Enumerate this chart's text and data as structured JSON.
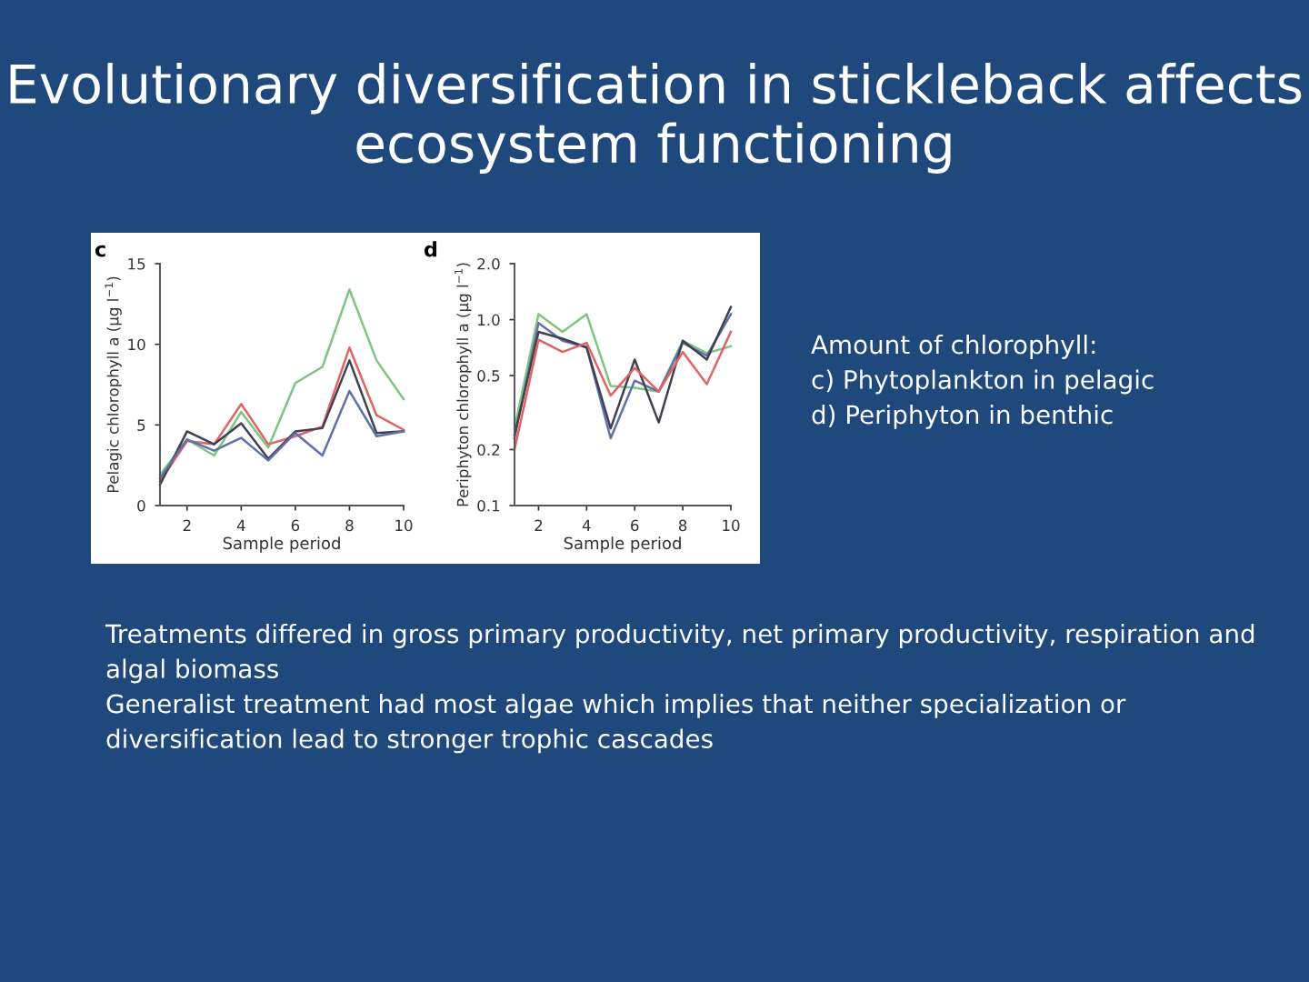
{
  "chart_data": [
    {
      "type": "line",
      "title": "c",
      "xlabel": "Sample period",
      "ylabel": "Pelagic chlorophyll a (μg l$^{−1}$)",
      "x": [
        1,
        2,
        3,
        4,
        5,
        6,
        7,
        8,
        9,
        10
      ],
      "xlim": [
        1,
        10
      ],
      "xticks": [
        2,
        4,
        6,
        8,
        10
      ],
      "ylim": [
        0,
        15
      ],
      "yticks": [
        0,
        5,
        10,
        15
      ],
      "grid": false,
      "legend": false,
      "series": [
        {
          "color": "#7fc47f",
          "values": [
            1.9,
            4.1,
            3.1,
            5.8,
            3.6,
            7.6,
            8.6,
            13.4,
            9.0,
            6.6
          ]
        },
        {
          "color": "#e06464",
          "values": [
            1.5,
            4.0,
            3.8,
            6.3,
            3.8,
            4.3,
            4.9,
            9.8,
            5.6,
            4.7
          ]
        },
        {
          "color": "#404050",
          "values": [
            1.3,
            4.6,
            3.8,
            5.1,
            2.9,
            4.6,
            4.8,
            9.0,
            4.5,
            4.6
          ]
        },
        {
          "color": "#6070a8",
          "values": [
            1.7,
            4.1,
            3.4,
            4.2,
            2.8,
            4.5,
            3.1,
            7.1,
            4.3,
            4.6
          ]
        }
      ],
      "annotations": [
        "Evolutionary diversification in stickleback affects ecosystem functioning",
        "Amount of chlorophyll:\nc) Phytoplankton in pelagic\nd) Periphyton in benthic",
        "Treatments differed in gross primary productivity, net primary productivity, respiration and algal biomass\nGeneralist treatment had most algae which implies that neither specialization or diversification lead to stronger trophic cascades"
      ]
    },
    {
      "type": "line",
      "title": "d",
      "xlabel": "Sample period",
      "ylabel": "Periphyton chlorophyll a (μg l$^{−1}$)",
      "x": [
        1,
        2,
        3,
        4,
        5,
        6,
        7,
        8,
        9,
        10
      ],
      "xlim": [
        1,
        10
      ],
      "xticks": [
        2,
        4,
        6,
        8,
        10
      ],
      "log": true,
      "ylim": [
        0.1,
        2.0
      ],
      "yticks": [
        0.1,
        0.2,
        0.5,
        {
          "value": 1,
          "label": "1.0"
        },
        {
          "value": 2,
          "label": "2.0"
        }
      ],
      "grid": false,
      "legend": false,
      "series": [
        {
          "color": "#7fc47f",
          "values": [
            0.26,
            1.07,
            0.86,
            1.07,
            0.44,
            0.43,
            0.41,
            0.77,
            0.66,
            0.72
          ]
        },
        {
          "color": "#6070a8",
          "values": [
            0.23,
            0.96,
            0.77,
            0.71,
            0.23,
            0.47,
            0.41,
            0.75,
            0.64,
            1.07
          ]
        },
        {
          "color": "#404050",
          "values": [
            0.24,
            0.86,
            0.79,
            0.71,
            0.26,
            0.61,
            0.28,
            0.77,
            0.61,
            1.17
          ]
        },
        {
          "color": "#e06464",
          "values": [
            0.2,
            0.78,
            0.67,
            0.75,
            0.39,
            0.55,
            0.41,
            0.67,
            0.45,
            0.86
          ]
        }
      ]
    }
  ]
}
